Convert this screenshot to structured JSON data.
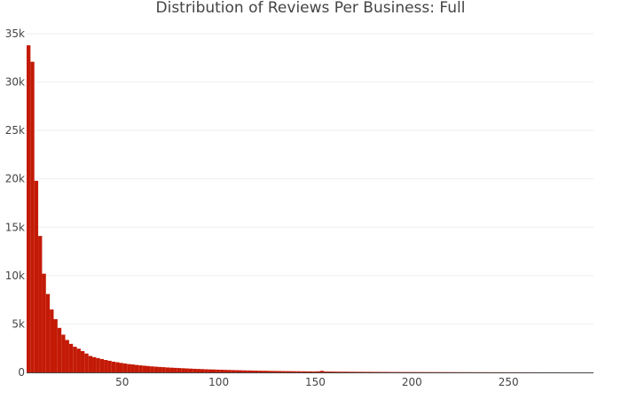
{
  "chart_data": {
    "type": "bar",
    "title": "Distribution of Reviews Per Business: Full",
    "xlabel": "",
    "ylabel": "",
    "bar_color": "#c31a06",
    "grid_color": "#eeeeee",
    "axis_color": "#444444",
    "grid": true,
    "xlim": [
      0.5,
      294
    ],
    "ylim": [
      0,
      35000
    ],
    "x_ticks": [
      50,
      100,
      150,
      200,
      250
    ],
    "x_tick_labels": [
      "50",
      "100",
      "150",
      "200",
      "250"
    ],
    "y_ticks": [
      0,
      5000,
      10000,
      15000,
      20000,
      25000,
      30000,
      35000
    ],
    "y_tick_labels": [
      "0",
      "5k",
      "10k",
      "15k",
      "20k",
      "25k",
      "30k",
      "35k"
    ],
    "bin_width": 2,
    "bin_start": [
      0.5,
      2.5,
      4.5,
      6.5,
      8.5,
      10.5,
      12.5,
      14.5,
      16.5,
      18.5,
      20.5,
      22.5,
      24.5,
      26.5,
      28.5,
      30.5,
      32.5,
      34.5,
      36.5,
      38.5,
      40.5,
      42.5,
      44.5,
      46.5,
      48.5,
      50.5,
      52.5,
      54.5,
      56.5,
      58.5,
      60.5,
      62.5,
      64.5,
      66.5,
      68.5,
      70.5,
      72.5,
      74.5,
      76.5,
      78.5,
      80.5,
      82.5,
      84.5,
      86.5,
      88.5,
      90.5,
      92.5,
      94.5,
      96.5,
      98.5,
      100.5,
      102.5,
      104.5,
      106.5,
      108.5,
      110.5,
      112.5,
      114.5,
      116.5,
      118.5,
      120.5,
      122.5,
      124.5,
      126.5,
      128.5,
      130.5,
      132.5,
      134.5,
      136.5,
      138.5,
      140.5,
      142.5,
      144.5,
      146.5,
      148.5,
      150.5,
      152.5,
      154.5,
      156.5,
      158.5,
      160.5,
      162.5,
      164.5,
      166.5,
      168.5,
      170.5,
      172.5,
      174.5,
      176.5,
      178.5,
      180.5,
      182.5,
      184.5,
      186.5,
      188.5,
      190.5,
      192.5,
      194.5,
      196.5,
      198.5,
      200.5,
      202.5,
      204.5,
      206.5,
      208.5,
      210.5,
      212.5,
      214.5,
      216.5,
      218.5,
      220.5,
      222.5,
      224.5,
      226.5,
      228.5,
      230.5,
      232.5,
      234.5,
      236.5,
      238.5,
      240.5,
      242.5,
      244.5,
      246.5,
      248.5,
      250.5,
      252.5,
      254.5,
      256.5,
      258.5,
      260.5,
      262.5,
      264.5,
      266.5,
      268.5,
      270.5,
      272.5,
      274.5
    ],
    "values": [
      33800,
      32100,
      19800,
      14100,
      10200,
      8100,
      6500,
      5500,
      4600,
      3900,
      3350,
      2950,
      2650,
      2450,
      2200,
      1950,
      1700,
      1580,
      1480,
      1380,
      1280,
      1200,
      1110,
      1050,
      980,
      920,
      860,
      820,
      770,
      730,
      690,
      660,
      620,
      590,
      560,
      540,
      510,
      490,
      470,
      450,
      430,
      410,
      390,
      370,
      355,
      340,
      325,
      310,
      300,
      285,
      272,
      260,
      250,
      238,
      228,
      218,
      208,
      200,
      190,
      182,
      175,
      167,
      160,
      154,
      148,
      142,
      136,
      130,
      125,
      120,
      115,
      110,
      106,
      102,
      98,
      110,
      160,
      92,
      86,
      82,
      78,
      75,
      72,
      69,
      66,
      63,
      60,
      58,
      56,
      54,
      52,
      50,
      48,
      46,
      44,
      42,
      40,
      38,
      37,
      36,
      35,
      34,
      33,
      32,
      31,
      30,
      29,
      28,
      27,
      26,
      25,
      24,
      23,
      22,
      21,
      20,
      19,
      18,
      18,
      17,
      16,
      15,
      15,
      14,
      13,
      13,
      12,
      12,
      11,
      11,
      10,
      10,
      9,
      9,
      8,
      8,
      8,
      7
    ]
  }
}
